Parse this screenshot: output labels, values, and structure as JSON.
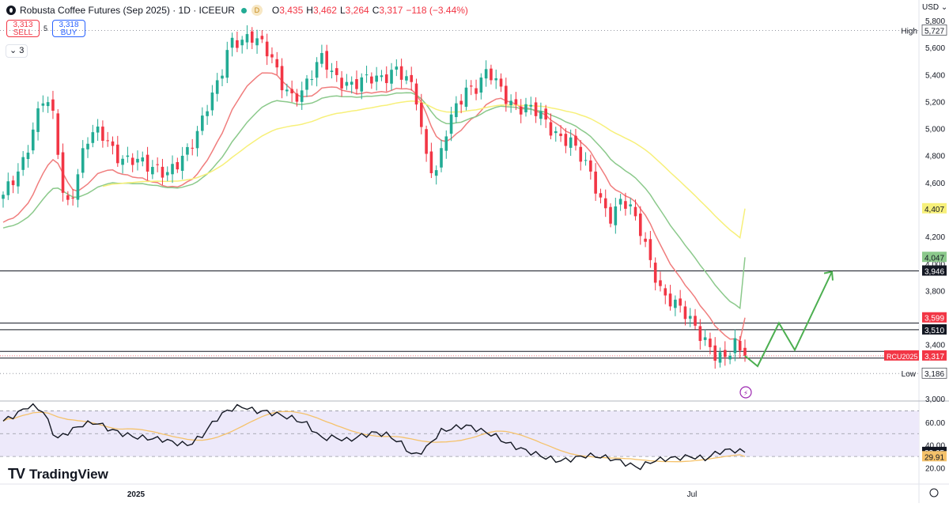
{
  "header": {
    "symbol_title": "Robusta Coffee Futures (Sep 2025) · 1D · ICEEUR",
    "open_label": "O",
    "open": "3,435",
    "high_label": "H",
    "high": "3,462",
    "low_label": "L",
    "low": "3,264",
    "close_label": "C",
    "close": "3,317",
    "change": "−118 (−3.44%)",
    "data_badge": "D"
  },
  "trade": {
    "sell_price": "3,313",
    "sell_label": "SELL",
    "spread": "5",
    "buy_price": "3,318",
    "buy_label": "BUY"
  },
  "indicators_toggle": "3",
  "currency": "USD",
  "branding": {
    "name": "TradingView"
  },
  "colors": {
    "bull": "#22ab94",
    "bear": "#f23645",
    "ema_fast": "#f07d7d",
    "ema_mid": "#8bc98b",
    "ema_slow": "#f7f07a",
    "rsi_line": "#131722",
    "rsi_ma": "#f5c26b",
    "rsi_band": "#ede9fa",
    "projection": "#4caf50"
  },
  "chart_data": [
    {
      "type": "candlestick",
      "ylim": [
        3000,
        5800
      ],
      "y_ticks": [
        "5,800",
        "5,600",
        "5,400",
        "5,200",
        "5,000",
        "4,800",
        "4,600",
        "4,200",
        "4,000",
        "3,800",
        "3,400",
        "3,000"
      ],
      "x_ticks": [
        "2025",
        "Jul"
      ],
      "current_price": 3317,
      "high_label": "High",
      "high_value": "5,727",
      "high_price": 5727,
      "low_label": "Low",
      "low_value": "3,186",
      "low_price": 3186,
      "symbol_tag": "RCU2025",
      "levels": [
        3946,
        3560,
        3510,
        3350,
        3300
      ],
      "level_labels": [
        "3,946",
        "3,510",
        "3,317"
      ],
      "price_labels": [
        {
          "value": "4,407",
          "color": "#f7f07a"
        },
        {
          "value": "4,047",
          "color": "#8bc98b"
        },
        {
          "value": "3,599",
          "color": "#f23645"
        }
      ],
      "moving_averages": [
        {
          "role": "fast",
          "start": 4170,
          "end": 3599
        },
        {
          "role": "mid",
          "start": 4100,
          "end": 4047
        },
        {
          "role": "slow",
          "start": 4300,
          "end": 4407
        }
      ],
      "projection_path": [
        3317,
        3240,
        3560,
        3360,
        3940
      ],
      "ohlc_shape": [
        4480,
        4620,
        4790,
        5030,
        5230,
        5040,
        4410,
        4600,
        4890,
        4960,
        4940,
        4820,
        4760,
        4740,
        4720,
        4730,
        4680,
        4720,
        4820,
        5020,
        5240,
        5340,
        5610,
        5650,
        5720,
        5640,
        5500,
        5330,
        5260,
        5280,
        5390,
        5520,
        5420,
        5360,
        5300,
        5340,
        5390,
        5400,
        5440,
        5350,
        5270,
        4830,
        4670,
        4960,
        5150,
        5310,
        5330,
        5420,
        5300,
        5210,
        5180,
        5160,
        5090,
        5000,
        4960,
        4930,
        4780,
        4650,
        4480,
        4360,
        4460,
        4370,
        4230,
        4000,
        3760,
        3680,
        3650,
        3580,
        3450,
        3300,
        3270,
        3440,
        3317
      ]
    },
    {
      "type": "line",
      "name": "RSI",
      "ylim": [
        10,
        80
      ],
      "y_ticks": [
        "60.00",
        "40.00",
        "20.00"
      ],
      "bands": [
        70,
        50,
        30
      ],
      "rsi_value": "33.65",
      "rsi_ma_value": "29.91",
      "rsi_shape": [
        61,
        67,
        75,
        70,
        45,
        52,
        58,
        60,
        54,
        50,
        47,
        46,
        45,
        42,
        40,
        48,
        62,
        71,
        74,
        70,
        69,
        66,
        63,
        58,
        46,
        47,
        44,
        48,
        51,
        49,
        42,
        30,
        38,
        52,
        55,
        57,
        53,
        49,
        42,
        37,
        33,
        29,
        26,
        28,
        31,
        30,
        28,
        24,
        20,
        26,
        28,
        29,
        30,
        28,
        34,
        36,
        33.65
      ]
    }
  ]
}
